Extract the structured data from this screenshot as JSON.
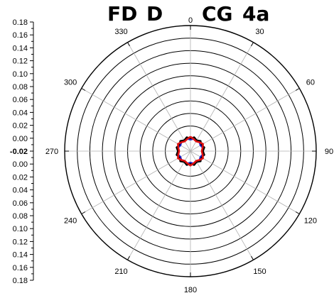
{
  "chart_data": {
    "type": "polar-line",
    "title_parts": [
      "FD",
      "D",
      "CG",
      "4a"
    ],
    "r_axis": {
      "labels": [
        "0.18",
        "0.16",
        "0.14",
        "0.12",
        "0.10",
        "0.08",
        "0.06",
        "0.04",
        "0.02",
        "0.00",
        "-0.02",
        "0.00",
        "0.02",
        "0.04",
        "0.06",
        "0.08",
        "0.10",
        "0.12",
        "0.14",
        "0.16",
        "0.18"
      ],
      "bold_label": "-0.02"
    },
    "radial_rings": [
      "0.02",
      "0.04",
      "0.06",
      "0.08",
      "0.10",
      "0.12",
      "0.14",
      "0.16",
      "0.18"
    ],
    "r_inner": -0.02,
    "r_outer": 0.18,
    "angle_labels": [
      "0",
      "30",
      "60",
      "90",
      "120",
      "150",
      "180",
      "210",
      "240",
      "270",
      "300",
      "330"
    ],
    "grid": true,
    "series": [
      {
        "color": "#000000",
        "width": 2.2,
        "values": [
          0.0,
          0.003,
          0.0,
          0.003,
          0.0,
          0.003,
          0.0,
          0.003,
          0.0,
          0.003,
          0.0,
          0.003,
          0.0,
          0.003,
          0.0,
          0.003,
          0.0,
          0.003,
          0.0,
          0.003,
          0.0,
          0.003,
          0.0,
          0.003,
          0.0
        ]
      },
      {
        "color": "#1f1fcc",
        "width": 1.8,
        "values": [
          -0.002,
          0.0,
          -0.002,
          0.0,
          -0.002,
          0.0,
          -0.002,
          0.0,
          -0.002,
          0.0,
          -0.002,
          0.0,
          -0.002,
          0.0,
          -0.002,
          0.0,
          -0.002,
          0.0,
          -0.002,
          0.0,
          -0.002,
          0.0,
          -0.002,
          0.0,
          -0.002
        ]
      },
      {
        "color": "#e01010",
        "width": 2.6,
        "values": [
          0.003,
          0.0,
          -0.002,
          0.0,
          0.003,
          0.0,
          -0.002,
          0.0,
          0.003,
          0.0,
          -0.002,
          0.0,
          0.003,
          0.0,
          -0.002,
          0.0,
          0.003,
          0.0,
          -0.002,
          0.0,
          0.003,
          0.0,
          -0.002,
          0.0,
          0.003
        ]
      }
    ]
  }
}
